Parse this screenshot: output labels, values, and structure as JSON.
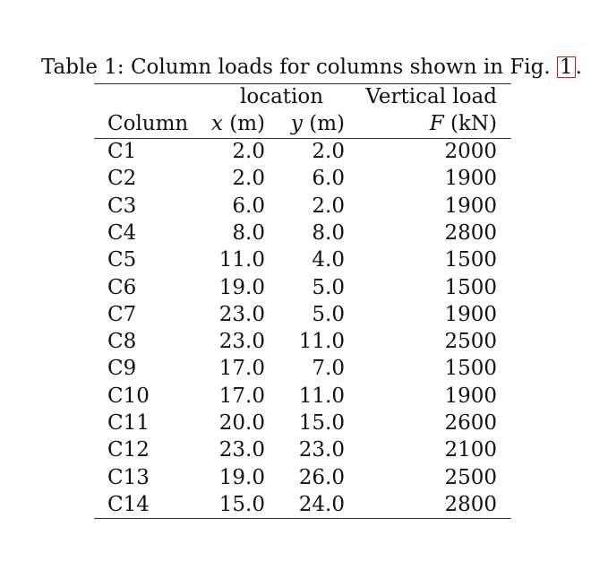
{
  "caption": {
    "prefix": "Table 1: Column loads for columns shown in Fig. ",
    "ref": "1",
    "suffix": "."
  },
  "headers": {
    "location": "location",
    "vertical_load": "Vertical load",
    "column": "Column",
    "x_var": "x",
    "x_unit": " (m)",
    "y_var": "y",
    "y_unit": " (m)",
    "f_var": "F",
    "f_unit": " (kN)"
  },
  "rows": [
    {
      "column": "C1",
      "x": "2.0",
      "y": "2.0",
      "f": "2000"
    },
    {
      "column": "C2",
      "x": "2.0",
      "y": "6.0",
      "f": "1900"
    },
    {
      "column": "C3",
      "x": "6.0",
      "y": "2.0",
      "f": "1900"
    },
    {
      "column": "C4",
      "x": "8.0",
      "y": "8.0",
      "f": "2800"
    },
    {
      "column": "C5",
      "x": "11.0",
      "y": "4.0",
      "f": "1500"
    },
    {
      "column": "C6",
      "x": "19.0",
      "y": "5.0",
      "f": "1500"
    },
    {
      "column": "C7",
      "x": "23.0",
      "y": "5.0",
      "f": "1900"
    },
    {
      "column": "C8",
      "x": "23.0",
      "y": "11.0",
      "f": "2500"
    },
    {
      "column": "C9",
      "x": "17.0",
      "y": "7.0",
      "f": "1500"
    },
    {
      "column": "C10",
      "x": "17.0",
      "y": "11.0",
      "f": "1900"
    },
    {
      "column": "C11",
      "x": "20.0",
      "y": "15.0",
      "f": "2600"
    },
    {
      "column": "C12",
      "x": "23.0",
      "y": "23.0",
      "f": "2100"
    },
    {
      "column": "C13",
      "x": "19.0",
      "y": "26.0",
      "f": "2500"
    },
    {
      "column": "C14",
      "x": "15.0",
      "y": "24.0",
      "f": "2800"
    }
  ]
}
